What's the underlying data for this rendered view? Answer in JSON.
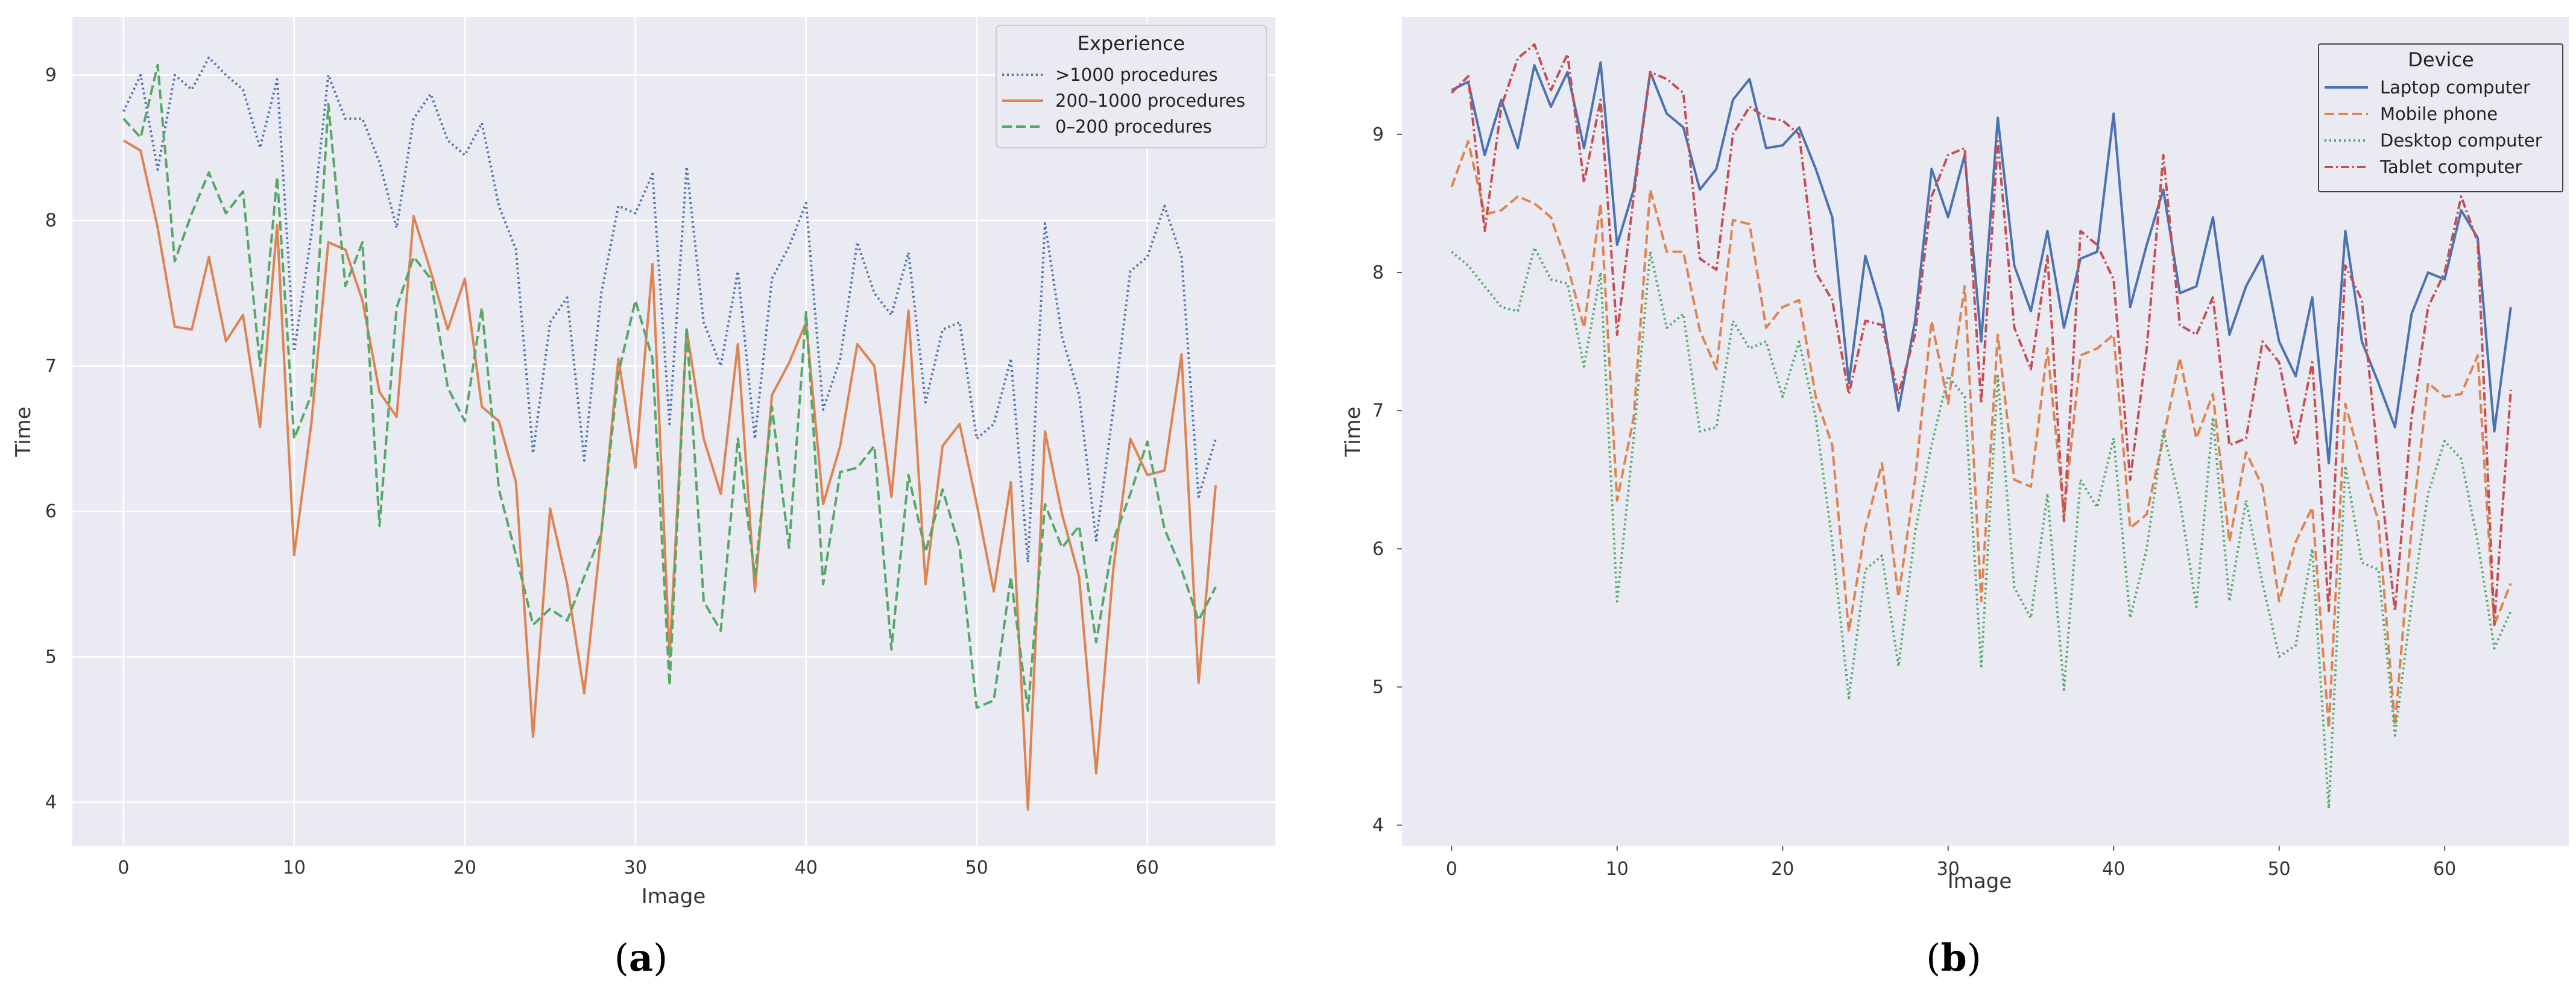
{
  "chart_data": [
    {
      "type": "line",
      "panel_label": "a",
      "title": "",
      "xlabel": "Image",
      "ylabel": "Time",
      "xlim": [
        -3,
        67.5
      ],
      "ylim": [
        3.7,
        9.4
      ],
      "xticks": [
        0,
        10,
        20,
        30,
        40,
        50,
        60
      ],
      "yticks": [
        4,
        5,
        6,
        7,
        8,
        9
      ],
      "grid": true,
      "background": "#eaeaf2",
      "legend": {
        "title": "Experience",
        "placement": "top-right"
      },
      "series": [
        {
          "name": ">1000 procedures",
          "color": "#4c72b0",
          "style": "dotted",
          "values": [
            8.75,
            9.0,
            8.35,
            9.0,
            8.9,
            9.12,
            9.0,
            8.9,
            8.5,
            8.97,
            7.1,
            7.9,
            9.0,
            8.7,
            8.7,
            8.4,
            7.95,
            8.7,
            8.87,
            8.55,
            8.45,
            8.67,
            8.1,
            7.8,
            6.4,
            7.3,
            7.47,
            6.35,
            7.5,
            8.1,
            8.05,
            8.32,
            6.6,
            8.37,
            7.3,
            7.0,
            7.65,
            6.5,
            7.6,
            7.82,
            8.12,
            6.7,
            7.05,
            7.85,
            7.5,
            7.35,
            7.78,
            6.75,
            7.25,
            7.3,
            6.5,
            6.6,
            7.05,
            5.65,
            7.98,
            7.2,
            6.8,
            5.8,
            6.7,
            7.65,
            7.75,
            8.1,
            7.75,
            6.1,
            6.5
          ]
        },
        {
          "name": "200–1000 procedures",
          "color": "#dd8452",
          "style": "solid",
          "values": [
            8.55,
            8.48,
            7.95,
            7.27,
            7.25,
            7.75,
            7.17,
            7.35,
            6.58,
            7.97,
            5.7,
            6.6,
            7.85,
            7.8,
            7.45,
            6.82,
            6.65,
            8.03,
            7.65,
            7.25,
            7.6,
            6.72,
            6.62,
            6.2,
            4.45,
            6.02,
            5.5,
            4.75,
            5.85,
            7.05,
            6.3,
            7.7,
            5.0,
            7.25,
            6.5,
            6.12,
            7.15,
            5.45,
            6.8,
            7.02,
            7.3,
            6.05,
            6.45,
            7.15,
            7.0,
            6.1,
            7.38,
            5.5,
            6.45,
            6.6,
            6.05,
            5.45,
            6.2,
            3.95,
            6.55,
            5.98,
            5.55,
            4.2,
            5.6,
            6.5,
            6.25,
            6.28,
            7.08,
            4.82,
            6.18
          ]
        },
        {
          "name": "0–200 procedures",
          "color": "#55a868",
          "style": "dashed",
          "values": [
            8.7,
            8.57,
            9.07,
            7.72,
            8.05,
            8.33,
            8.05,
            8.2,
            7.0,
            8.3,
            6.5,
            6.8,
            8.8,
            7.55,
            7.85,
            5.9,
            7.4,
            7.75,
            7.6,
            6.85,
            6.62,
            7.4,
            6.15,
            5.7,
            5.22,
            5.33,
            5.25,
            5.55,
            5.85,
            6.95,
            7.45,
            7.05,
            4.8,
            7.27,
            5.38,
            5.18,
            6.5,
            5.55,
            6.72,
            5.75,
            7.37,
            5.5,
            6.27,
            6.3,
            6.45,
            5.05,
            6.25,
            5.72,
            6.15,
            5.75,
            4.65,
            4.7,
            5.55,
            4.63,
            6.05,
            5.75,
            5.9,
            5.1,
            5.8,
            6.12,
            6.48,
            5.88,
            5.6,
            5.25,
            5.48
          ]
        }
      ]
    },
    {
      "type": "line",
      "panel_label": "b",
      "title": "",
      "xlabel": "Image",
      "ylabel": "Time",
      "xlim": [
        -3,
        67.5
      ],
      "ylim": [
        3.85,
        9.85
      ],
      "xticks": [
        0,
        10,
        20,
        30,
        40,
        50,
        60
      ],
      "yticks": [
        4,
        5,
        6,
        7,
        8,
        9
      ],
      "grid": false,
      "background": "#eaeaf2",
      "legend": {
        "title": "Device",
        "placement": "top-right"
      },
      "series": [
        {
          "name": "Laptop computer",
          "color": "#4c72b0",
          "style": "solid",
          "values": [
            9.32,
            9.38,
            8.85,
            9.25,
            8.9,
            9.5,
            9.2,
            9.45,
            8.9,
            9.52,
            8.2,
            8.6,
            9.45,
            9.15,
            9.05,
            8.6,
            8.75,
            9.25,
            9.4,
            8.9,
            8.92,
            9.05,
            8.75,
            8.4,
            7.2,
            8.12,
            7.72,
            7.0,
            7.65,
            8.75,
            8.4,
            8.85,
            7.5,
            9.12,
            8.05,
            7.72,
            8.3,
            7.6,
            8.1,
            8.15,
            9.15,
            7.75,
            8.2,
            8.6,
            7.85,
            7.9,
            8.4,
            7.55,
            7.9,
            8.12,
            7.5,
            7.25,
            7.82,
            6.62,
            8.3,
            7.5,
            7.2,
            6.88,
            7.7,
            8.0,
            7.95,
            8.45,
            8.25,
            6.85,
            7.75
          ]
        },
        {
          "name": "Mobile phone",
          "color": "#dd8452",
          "style": "dashed",
          "values": [
            8.62,
            8.95,
            8.42,
            8.45,
            8.55,
            8.5,
            8.4,
            8.05,
            7.6,
            8.5,
            6.35,
            6.95,
            8.6,
            8.15,
            8.15,
            7.58,
            7.3,
            8.38,
            8.35,
            7.6,
            7.75,
            7.8,
            7.1,
            6.75,
            5.4,
            6.15,
            6.62,
            5.65,
            6.5,
            7.65,
            7.05,
            7.9,
            5.62,
            7.55,
            6.5,
            6.45,
            7.45,
            6.25,
            7.4,
            7.45,
            7.55,
            6.15,
            6.25,
            6.8,
            7.38,
            6.8,
            7.12,
            6.05,
            6.7,
            6.45,
            5.62,
            6.05,
            6.3,
            4.7,
            7.05,
            6.6,
            6.2,
            4.72,
            6.15,
            7.2,
            7.1,
            7.12,
            7.4,
            5.45,
            5.75
          ]
        },
        {
          "name": "Desktop computer",
          "color": "#55a868",
          "style": "dotted",
          "values": [
            8.15,
            8.05,
            7.9,
            7.75,
            7.72,
            8.18,
            7.95,
            7.92,
            7.32,
            8.0,
            5.62,
            6.8,
            8.15,
            7.6,
            7.7,
            6.85,
            6.88,
            7.65,
            7.45,
            7.5,
            7.1,
            7.5,
            6.95,
            6.05,
            4.92,
            5.85,
            5.95,
            5.15,
            6.12,
            6.75,
            7.25,
            7.1,
            5.15,
            7.25,
            5.72,
            5.5,
            6.4,
            4.98,
            6.5,
            6.3,
            6.8,
            5.5,
            6.0,
            6.85,
            6.35,
            5.58,
            6.95,
            5.62,
            6.35,
            5.75,
            5.22,
            5.3,
            6.0,
            4.12,
            6.6,
            5.9,
            5.85,
            4.65,
            5.6,
            6.4,
            6.78,
            6.65,
            6.05,
            5.28,
            5.55
          ]
        },
        {
          "name": "Tablet computer",
          "color": "#c44e52",
          "style": "dashdot",
          "values": [
            9.3,
            9.42,
            8.3,
            9.2,
            9.55,
            9.65,
            9.32,
            9.58,
            8.65,
            9.25,
            7.55,
            8.55,
            9.45,
            9.4,
            9.3,
            8.1,
            8.02,
            9.0,
            9.2,
            9.12,
            9.1,
            9.0,
            8.0,
            7.8,
            7.12,
            7.65,
            7.62,
            7.12,
            7.55,
            8.55,
            8.85,
            8.9,
            7.05,
            8.95,
            7.6,
            7.3,
            8.12,
            6.2,
            8.3,
            8.2,
            7.95,
            6.5,
            7.45,
            8.85,
            7.62,
            7.55,
            7.82,
            6.75,
            6.8,
            7.5,
            7.35,
            6.75,
            7.35,
            5.55,
            8.05,
            7.8,
            6.62,
            5.55,
            6.95,
            7.75,
            8.0,
            8.55,
            8.22,
            5.45,
            7.15
          ]
        }
      ]
    }
  ],
  "captions": {
    "a": "a",
    "b": "b"
  }
}
